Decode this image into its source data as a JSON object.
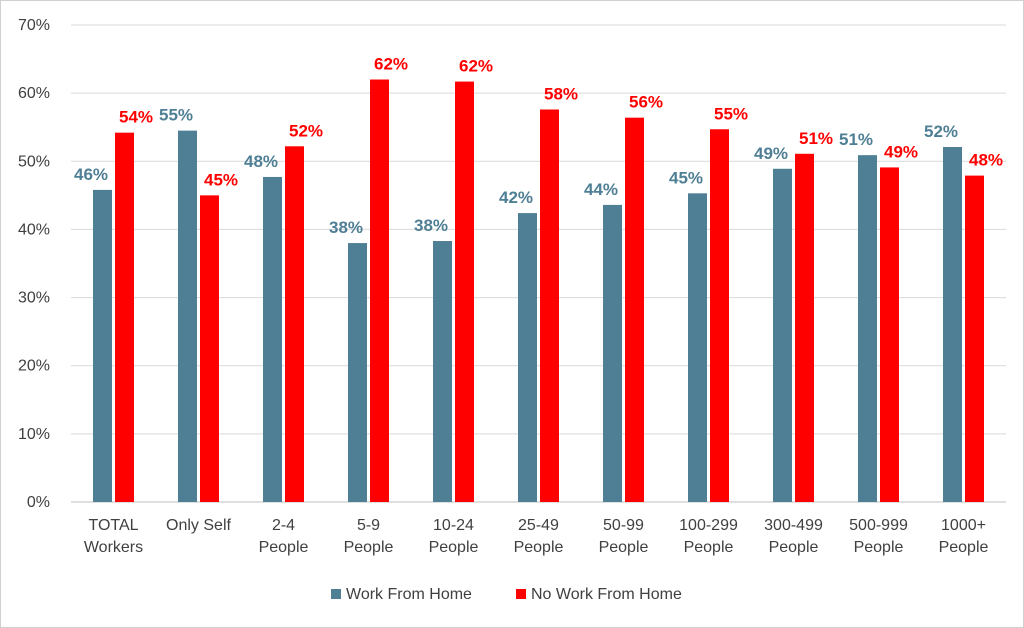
{
  "chart_data": {
    "type": "bar",
    "title": "",
    "xlabel": "",
    "ylabel": "",
    "ylim": [
      0,
      70
    ],
    "y_tick_step": 10,
    "y_tick_suffix": "%",
    "grid": true,
    "legend_position": "bottom",
    "categories": [
      [
        "TOTAL",
        "Workers"
      ],
      [
        "Only Self"
      ],
      [
        "2-4",
        "People"
      ],
      [
        "5-9",
        "People"
      ],
      [
        "10-24",
        "People"
      ],
      [
        "25-49",
        "People"
      ],
      [
        "50-99",
        "People"
      ],
      [
        "100-299",
        "People"
      ],
      [
        "300-499",
        "People"
      ],
      [
        "500-999",
        "People"
      ],
      [
        "1000+",
        "People"
      ]
    ],
    "series": [
      {
        "name": "Work From Home",
        "color": "#4f7f94",
        "values": [
          45.8,
          54.5,
          47.7,
          38.0,
          38.3,
          42.4,
          43.6,
          45.3,
          48.9,
          50.9,
          52.1
        ],
        "labels": [
          "46%",
          "55%",
          "48%",
          "38%",
          "38%",
          "42%",
          "44%",
          "45%",
          "49%",
          "51%",
          "52%"
        ]
      },
      {
        "name": "No Work From Home",
        "color": "#ff0000",
        "values": [
          54.2,
          45.0,
          52.2,
          62.0,
          61.7,
          57.6,
          56.4,
          54.7,
          51.1,
          49.1,
          47.9
        ],
        "labels": [
          "54%",
          "45%",
          "52%",
          "62%",
          "62%",
          "58%",
          "56%",
          "55%",
          "51%",
          "49%",
          "48%"
        ]
      }
    ]
  }
}
